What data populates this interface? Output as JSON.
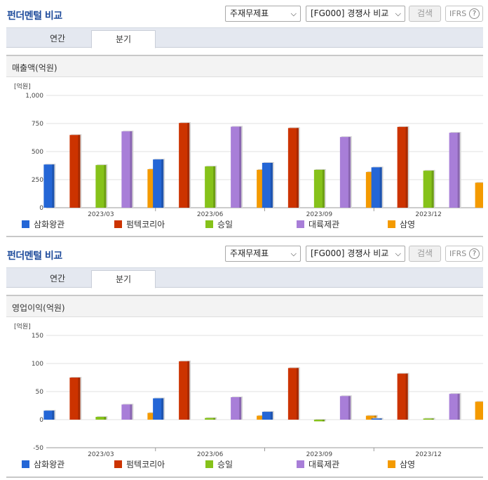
{
  "panels": [
    {
      "title": "펀더멘털 비교",
      "statement_select": "주재무제표",
      "peer_select": "[FG000] 경쟁사 비교",
      "search_label": "검색",
      "ifrs_label": "IFRS",
      "help_glyph": "?",
      "tabs": [
        {
          "label": "연간",
          "active": false
        },
        {
          "label": "분기",
          "active": true
        }
      ],
      "section_title": "매출액(억원)"
    },
    {
      "title": "펀더멘털 비교",
      "statement_select": "주재무제표",
      "peer_select": "[FG000] 경쟁사 비교",
      "search_label": "검색",
      "ifrs_label": "IFRS",
      "help_glyph": "?",
      "tabs": [
        {
          "label": "연간",
          "active": false
        },
        {
          "label": "분기",
          "active": true
        }
      ],
      "section_title": "영업이익(억원)"
    }
  ],
  "chart_data": [
    {
      "type": "bar",
      "unit_label": "[억원]",
      "categories": [
        "2023/03",
        "2023/06",
        "2023/09",
        "2023/12"
      ],
      "ylim": [
        0,
        1000
      ],
      "yticks": [
        0,
        250,
        500,
        750,
        1000
      ],
      "ytick_labels": [
        "0",
        "250",
        "500",
        "750",
        "1,000"
      ],
      "grid": true,
      "legend_position": "bottom",
      "series": [
        {
          "name": "삼화왕관",
          "color": "#2466d6",
          "values": [
            385,
            430,
            400,
            360
          ]
        },
        {
          "name": "펌텍코리아",
          "color": "#cc3300",
          "values": [
            648,
            755,
            710,
            720
          ]
        },
        {
          "name": "승일",
          "color": "#86c21a",
          "values": [
            380,
            368,
            338,
            330
          ]
        },
        {
          "name": "대륙제관",
          "color": "#a87ed8",
          "values": [
            680,
            722,
            630,
            668
          ]
        },
        {
          "name": "삼영",
          "color": "#f49a00",
          "values": [
            343,
            338,
            318,
            223
          ]
        }
      ]
    },
    {
      "type": "bar",
      "unit_label": "[억원]",
      "categories": [
        "2023/03",
        "2023/06",
        "2023/09",
        "2023/12"
      ],
      "ylim": [
        -50,
        150
      ],
      "yticks": [
        -50,
        0,
        50,
        100,
        150
      ],
      "ytick_labels": [
        "-50",
        "0",
        "50",
        "100",
        "150"
      ],
      "grid": true,
      "legend_position": "bottom",
      "series": [
        {
          "name": "삼화왕관",
          "color": "#2466d6",
          "values": [
            16,
            38,
            14,
            2
          ]
        },
        {
          "name": "펌텍코리아",
          "color": "#cc3300",
          "values": [
            75,
            104,
            92,
            82
          ]
        },
        {
          "name": "승일",
          "color": "#86c21a",
          "values": [
            5,
            3,
            -3,
            2
          ]
        },
        {
          "name": "대륙제관",
          "color": "#a87ed8",
          "values": [
            27,
            40,
            42,
            46
          ]
        },
        {
          "name": "삼영",
          "color": "#f49a00",
          "values": [
            12,
            7,
            7,
            32
          ]
        }
      ]
    }
  ]
}
